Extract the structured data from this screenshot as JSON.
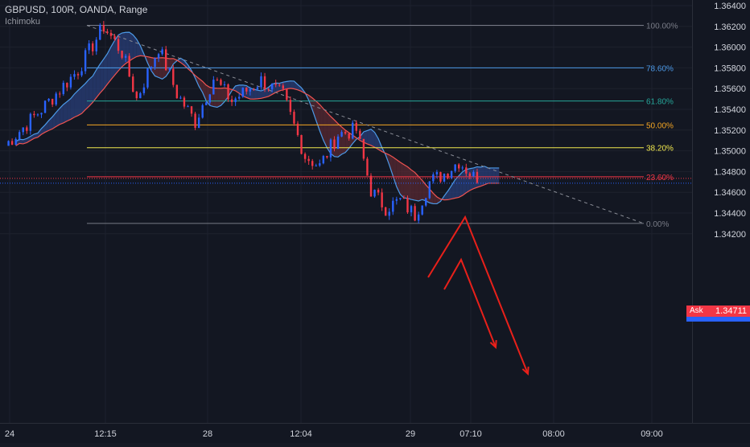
{
  "header": {
    "symbol_line": "GBPUSD, 100R, OANDA, Range",
    "indicator": "Ichimoku"
  },
  "ask": {
    "label": "Ask",
    "price": "1.34711"
  },
  "colors": {
    "background": "#131722",
    "candle_up": "#2962ff",
    "candle_down": "#f23645",
    "kumo_bull": "#2a3f7a",
    "kumo_bear": "#5a2a33",
    "fib_100": "#787b86",
    "fib_786": "#4c9ae8",
    "fib_618": "#26a69a",
    "fib_50": "#f5a623",
    "fib_382": "#f2e94e",
    "fib_236": "#f23645",
    "fib_0": "#787b86",
    "arrows": "#e8201a",
    "trendline": "#8a8d96"
  },
  "chart_data": {
    "type": "candlestick",
    "title": "GBPUSD, 100R, OANDA, Range",
    "indicator": "Ichimoku",
    "y_ticks": [
      "1.36400",
      "1.36200",
      "1.36000",
      "1.35800",
      "1.35600",
      "1.35400",
      "1.35200",
      "1.35000",
      "1.34800",
      "1.34600",
      "1.34400",
      "1.34200"
    ],
    "ylim": [
      1.3413,
      1.3646
    ],
    "x_ticks": [
      "24",
      "12:15",
      "28",
      "12:04",
      "29",
      "07:10",
      "08:00",
      "09:00"
    ],
    "fibonacci": [
      {
        "level": "100.00%",
        "price": 1.3621
      },
      {
        "level": "78.60%",
        "price": 1.358
      },
      {
        "level": "61.80%",
        "price": 1.3548
      },
      {
        "level": "50.00%",
        "price": 1.3525
      },
      {
        "level": "38.20%",
        "price": 1.3503
      },
      {
        "level": "23.60%",
        "price": 1.3475
      },
      {
        "level": "0.00%",
        "price": 1.343
      }
    ],
    "current_price": 1.34711,
    "close_path": [
      {
        "bar": 0,
        "price": 1.3505
      },
      {
        "bar": 10,
        "price": 1.354
      },
      {
        "bar": 20,
        "price": 1.3578
      },
      {
        "bar": 27,
        "price": 1.362
      },
      {
        "bar": 32,
        "price": 1.3595
      },
      {
        "bar": 36,
        "price": 1.355
      },
      {
        "bar": 42,
        "price": 1.36
      },
      {
        "bar": 47,
        "price": 1.3555
      },
      {
        "bar": 52,
        "price": 1.3528
      },
      {
        "bar": 57,
        "price": 1.357
      },
      {
        "bar": 62,
        "price": 1.3548
      },
      {
        "bar": 70,
        "price": 1.3568
      },
      {
        "bar": 76,
        "price": 1.3553
      },
      {
        "bar": 82,
        "price": 1.3495
      },
      {
        "bar": 86,
        "price": 1.3485
      },
      {
        "bar": 91,
        "price": 1.3516
      },
      {
        "bar": 96,
        "price": 1.352
      },
      {
        "bar": 100,
        "price": 1.3462
      },
      {
        "bar": 104,
        "price": 1.3445
      },
      {
        "bar": 108,
        "price": 1.3452
      },
      {
        "bar": 112,
        "price": 1.3438
      },
      {
        "bar": 116,
        "price": 1.347
      },
      {
        "bar": 120,
        "price": 1.3478
      },
      {
        "bar": 124,
        "price": 1.349
      },
      {
        "bar": 128,
        "price": 1.3475
      }
    ]
  }
}
